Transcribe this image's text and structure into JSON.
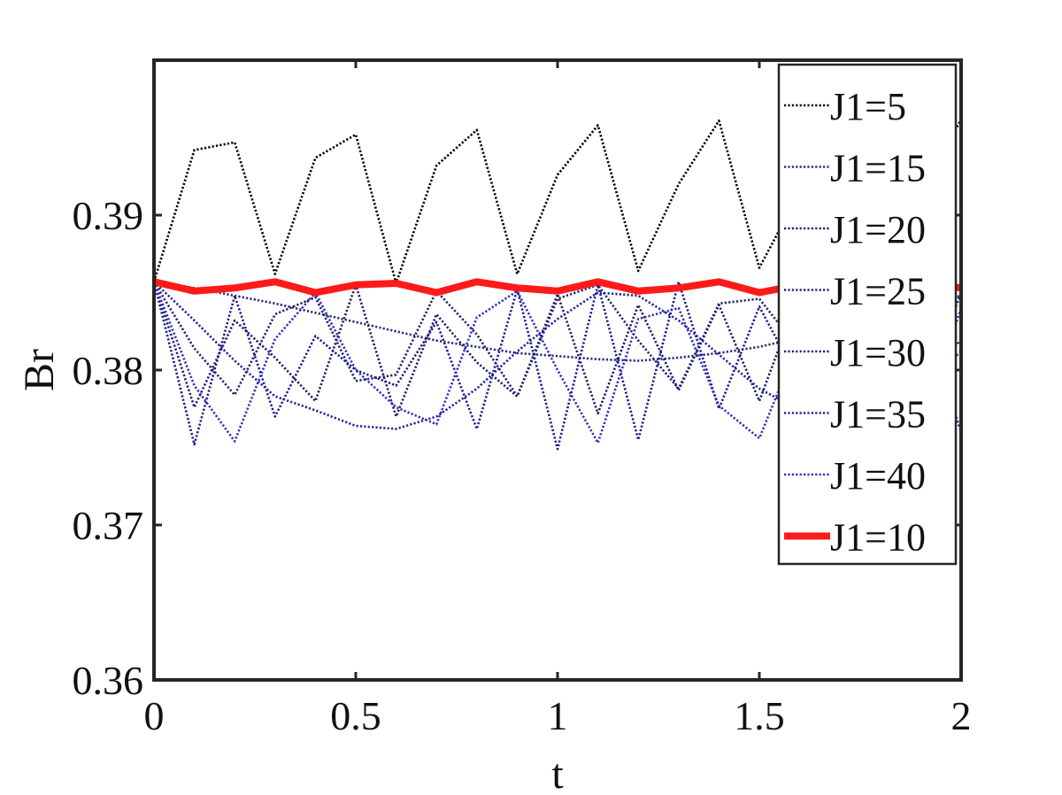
{
  "chart_data": {
    "type": "line",
    "title": "",
    "xlabel": "t",
    "ylabel": "Br",
    "xlim": [
      0,
      2
    ],
    "ylim": [
      0.36,
      0.4
    ],
    "xticks": [
      0,
      0.5,
      1,
      1.5,
      2
    ],
    "xtick_labels": [
      "0",
      "0.5",
      "1",
      "1.5",
      "2"
    ],
    "yticks": [
      0.36,
      0.37,
      0.38,
      0.39
    ],
    "ytick_labels": [
      "0.36",
      "0.37",
      "0.38",
      "0.39"
    ],
    "grid": false,
    "legend_position": "top-right",
    "x": [
      0,
      0.1,
      0.2,
      0.3,
      0.4,
      0.5,
      0.6,
      0.7,
      0.8,
      0.9,
      1.0,
      1.1,
      1.2,
      1.3,
      1.4,
      1.5,
      1.6,
      1.7,
      1.8,
      1.9,
      2.0
    ],
    "series": [
      {
        "name": "J1=5",
        "color": "#000000",
        "style": "dotted",
        "values": [
          0.3857,
          0.3942,
          0.3947,
          0.3862,
          0.3937,
          0.3952,
          0.3856,
          0.3932,
          0.3955,
          0.3862,
          0.3926,
          0.3958,
          0.3864,
          0.392,
          0.3961,
          0.3866,
          0.3915,
          0.3962,
          0.3868,
          0.391,
          0.3962
        ]
      },
      {
        "name": "J1=15",
        "color": "#2a2a80",
        "style": "dotted",
        "values": [
          0.3857,
          0.3853,
          0.3848,
          0.3843,
          0.3837,
          0.3831,
          0.3825,
          0.3819,
          0.3815,
          0.3811,
          0.3809,
          0.3807,
          0.3806,
          0.3808,
          0.3811,
          0.3815,
          0.3821,
          0.3827,
          0.3834,
          0.3841,
          0.3848
        ]
      },
      {
        "name": "J1=20",
        "color": "#1f1f66",
        "style": "dotted",
        "values": [
          0.3857,
          0.3776,
          0.3832,
          0.3808,
          0.378,
          0.3855,
          0.377,
          0.3836,
          0.3805,
          0.3783,
          0.3849,
          0.3772,
          0.3842,
          0.3787,
          0.3842,
          0.378,
          0.385,
          0.379,
          0.384,
          0.378,
          0.385
        ]
      },
      {
        "name": "J1=25",
        "color": "#22226e",
        "style": "dotted",
        "values": [
          0.3857,
          0.3814,
          0.3784,
          0.3836,
          0.3847,
          0.3793,
          0.3797,
          0.3851,
          0.3823,
          0.3783,
          0.3846,
          0.3855,
          0.3819,
          0.3788,
          0.3843,
          0.3846,
          0.3813,
          0.379,
          0.384,
          0.3848,
          0.3815
        ]
      },
      {
        "name": "J1=30",
        "color": "#1c1c8c",
        "style": "dotted",
        "values": [
          0.3857,
          0.3752,
          0.3848,
          0.377,
          0.3822,
          0.38,
          0.379,
          0.3831,
          0.3762,
          0.3852,
          0.3749,
          0.3855,
          0.3755,
          0.3857,
          0.3775,
          0.3841,
          0.3792,
          0.3822,
          0.378,
          0.384,
          0.376
        ]
      },
      {
        "name": "J1=35",
        "color": "#2424a0",
        "style": "dotted",
        "values": [
          0.3857,
          0.3832,
          0.3806,
          0.3783,
          0.3774,
          0.3764,
          0.3762,
          0.377,
          0.3788,
          0.3812,
          0.3833,
          0.385,
          0.3848,
          0.3832,
          0.381,
          0.3788,
          0.3774,
          0.3766,
          0.3772,
          0.379,
          0.3812
        ]
      },
      {
        "name": "J1=40",
        "color": "#3030b8",
        "style": "dotted",
        "values": [
          0.3857,
          0.379,
          0.3754,
          0.382,
          0.385,
          0.38,
          0.3776,
          0.3765,
          0.3834,
          0.3851,
          0.38,
          0.3753,
          0.3833,
          0.384,
          0.3777,
          0.3756,
          0.382,
          0.385,
          0.38,
          0.376,
          0.384
        ]
      },
      {
        "name": "J1=10",
        "color": "#ff1a1a",
        "style": "solid-thick",
        "values": [
          0.3857,
          0.3851,
          0.3853,
          0.3857,
          0.385,
          0.3855,
          0.3856,
          0.385,
          0.3857,
          0.3853,
          0.3851,
          0.3857,
          0.3851,
          0.3853,
          0.3857,
          0.385,
          0.3855,
          0.3856,
          0.385,
          0.3857,
          0.3853
        ]
      }
    ]
  }
}
